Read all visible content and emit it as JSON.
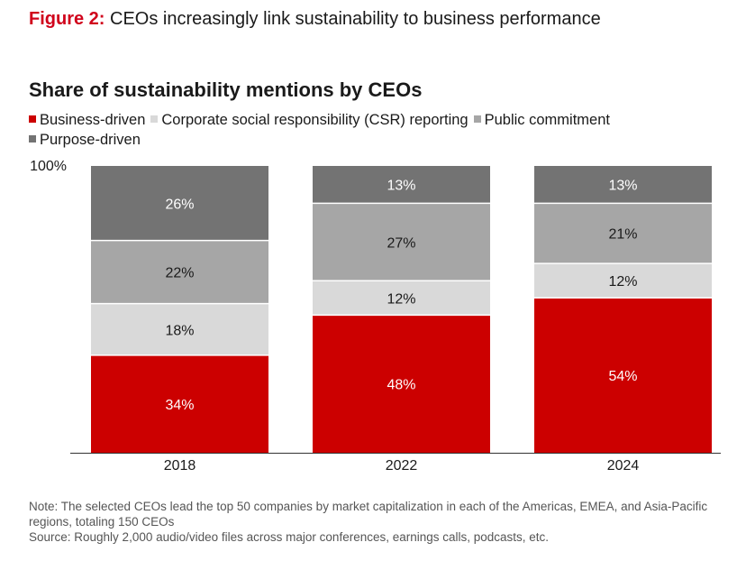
{
  "figure": {
    "label": "Figure 2:",
    "title": "CEOs increasingly link sustainability to business performance"
  },
  "chart_data": {
    "type": "bar",
    "stacked": true,
    "title": "Share of sustainability mentions by CEOs",
    "categories": [
      "2018",
      "2022",
      "2024"
    ],
    "ylim": [
      0,
      100
    ],
    "y_tick_label": "100%",
    "legend_position": "top-left",
    "series": [
      {
        "name": "Business-driven",
        "color": "#cc0000",
        "label_color": "#ffffff",
        "values": [
          34,
          48,
          54
        ],
        "labels": [
          "34%",
          "48%",
          "54%"
        ]
      },
      {
        "name": "Corporate social responsibility (CSR) reporting",
        "color": "#d9d9d9",
        "label_color": "#1a1a1a",
        "values": [
          18,
          12,
          12
        ],
        "labels": [
          "18%",
          "12%",
          "12%"
        ]
      },
      {
        "name": "Public commitment",
        "color": "#a6a6a6",
        "label_color": "#1a1a1a",
        "values": [
          22,
          27,
          21
        ],
        "labels": [
          "22%",
          "27%",
          "21%"
        ]
      },
      {
        "name": "Purpose-driven",
        "color": "#737373",
        "label_color": "#ffffff",
        "values": [
          26,
          13,
          13
        ],
        "labels": [
          "26%",
          "13%",
          "13%"
        ]
      }
    ]
  },
  "notes": {
    "note": "Note: The selected CEOs lead the top 50 companies by market capitalization in each of the Americas, EMEA, and Asia-Pacific regions, totaling 150 CEOs",
    "source": "Source: Roughly 2,000 audio/video files across major conferences, earnings calls, podcasts, etc."
  }
}
